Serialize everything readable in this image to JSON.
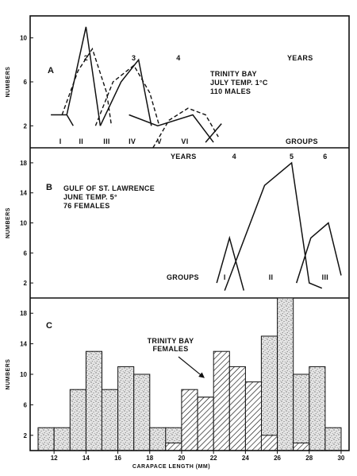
{
  "chart_data": [
    {
      "id": "A",
      "type": "line",
      "panel_label": "A",
      "annotation_lines": [
        "TRINITY BAY",
        "JULY TEMP. 1°C",
        "110 MALES"
      ],
      "ylabel": "NUMBERS",
      "yticks": [
        2,
        6,
        10
      ],
      "ylim": [
        0,
        12
      ],
      "xlim": [
        10.5,
        30.5
      ],
      "years_label": "YEARS",
      "years": [
        {
          "label": "2",
          "x": 14
        },
        {
          "label": "3",
          "x": 17
        },
        {
          "label": "4",
          "x": 19.8
        }
      ],
      "groups_label": "GROUPS",
      "groups": [
        {
          "label": "I",
          "x": 12.4
        },
        {
          "label": "II",
          "x": 13.7
        },
        {
          "label": "III",
          "x": 15.3
        },
        {
          "label": "IV",
          "x": 16.9
        },
        {
          "label": "V",
          "x": 18.6
        },
        {
          "label": "VI",
          "x": 20.2
        }
      ],
      "series": [
        {
          "style": "solid",
          "points": [
            [
              11.8,
              3
            ],
            [
              12.8,
              3
            ],
            [
              13.2,
              2
            ]
          ]
        },
        {
          "style": "solid",
          "points": [
            [
              12.8,
              3
            ],
            [
              14.0,
              11
            ],
            [
              14.9,
              2
            ]
          ]
        },
        {
          "style": "solid",
          "points": [
            [
              14.9,
              2
            ],
            [
              16.2,
              6
            ],
            [
              17.3,
              8
            ],
            [
              18.1,
              2
            ]
          ]
        },
        {
          "style": "solid",
          "points": [
            [
              16.7,
              3
            ],
            [
              18.5,
              2
            ],
            [
              20.7,
              3
            ],
            [
              22.0,
              0.5
            ]
          ]
        },
        {
          "style": "solid",
          "points": [
            [
              21.5,
              0.5
            ],
            [
              22.5,
              2.2
            ]
          ]
        },
        {
          "style": "dashed",
          "points": [
            [
              12.5,
              3
            ],
            [
              13.5,
              7
            ],
            [
              14.4,
              9
            ],
            [
              15.3,
              5
            ],
            [
              15.6,
              2
            ]
          ]
        },
        {
          "style": "dashed",
          "points": [
            [
              14.6,
              2
            ],
            [
              15.7,
              6
            ],
            [
              17.0,
              7.5
            ],
            [
              18.0,
              5
            ],
            [
              18.6,
              2
            ]
          ]
        },
        {
          "style": "dashed",
          "points": [
            [
              18.2,
              0
            ],
            [
              19.2,
              2.5
            ],
            [
              20.4,
              3.6
            ],
            [
              21.5,
              3
            ],
            [
              22.3,
              1
            ]
          ]
        }
      ]
    },
    {
      "id": "B",
      "type": "line",
      "panel_label": "B",
      "annotation_lines": [
        "GULF OF ST. LAWRENCE",
        "JUNE TEMP. 5°",
        "76 FEMALES"
      ],
      "ylabel": "NUMBERS",
      "yticks": [
        2,
        6,
        10,
        14,
        18
      ],
      "ylim": [
        0,
        20
      ],
      "xlim": [
        10.5,
        30.5
      ],
      "years_label": "YEARS",
      "years": [
        {
          "label": "4",
          "x": 23.3
        },
        {
          "label": "5",
          "x": 26.9
        },
        {
          "label": "6",
          "x": 29.0
        }
      ],
      "groups_label": "GROUPS",
      "groups": [
        {
          "label": "I",
          "x": 22.7
        },
        {
          "label": "II",
          "x": 25.6
        },
        {
          "label": "III",
          "x": 29.0
        }
      ],
      "series": [
        {
          "style": "solid",
          "points": [
            [
              22.2,
              2
            ],
            [
              23.0,
              8
            ],
            [
              23.9,
              1
            ]
          ]
        },
        {
          "style": "solid",
          "points": [
            [
              22.7,
              1
            ],
            [
              25.2,
              15
            ],
            [
              26.9,
              18
            ],
            [
              28.0,
              2
            ],
            [
              28.8,
              1.3
            ]
          ]
        },
        {
          "style": "solid",
          "points": [
            [
              27.2,
              2
            ],
            [
              28.1,
              8
            ],
            [
              29.2,
              10
            ],
            [
              30.0,
              3
            ]
          ]
        }
      ]
    },
    {
      "id": "C",
      "type": "bar",
      "panel_label": "C",
      "annotation_lines": [
        "TRINITY BAY",
        "FEMALES"
      ],
      "ylabel": "NUMBERS",
      "yticks": [
        2,
        6,
        10,
        14,
        18
      ],
      "ylim": [
        0,
        20
      ],
      "xlim": [
        10.5,
        30.5
      ],
      "xticks": [
        12,
        14,
        16,
        18,
        20,
        22,
        24,
        26,
        28,
        30
      ],
      "xlabel": "CARAPACE LENGTH (MM)",
      "series": [
        {
          "name": "stippled",
          "fill": "stipple",
          "x": [
            11.5,
            12.5,
            13.5,
            14.5,
            15.5,
            16.5,
            17.5,
            18.5,
            19.5,
            20.5,
            21.5,
            22.5,
            23.5,
            24.5,
            25.5,
            26.5,
            27.5,
            28.5,
            29.5
          ],
          "values": [
            3,
            3,
            8,
            13,
            8,
            11,
            10,
            3,
            3,
            2,
            7,
            2,
            4,
            2,
            15,
            20,
            10,
            11,
            3
          ]
        },
        {
          "name": "hatched",
          "fill": "hatch",
          "x": [
            19.5,
            20.5,
            21.5,
            22.5,
            23.5,
            24.5,
            25.5,
            26.5,
            27.5
          ],
          "values": [
            1,
            8,
            7,
            13,
            11,
            9,
            2,
            0,
            1
          ]
        }
      ]
    }
  ]
}
